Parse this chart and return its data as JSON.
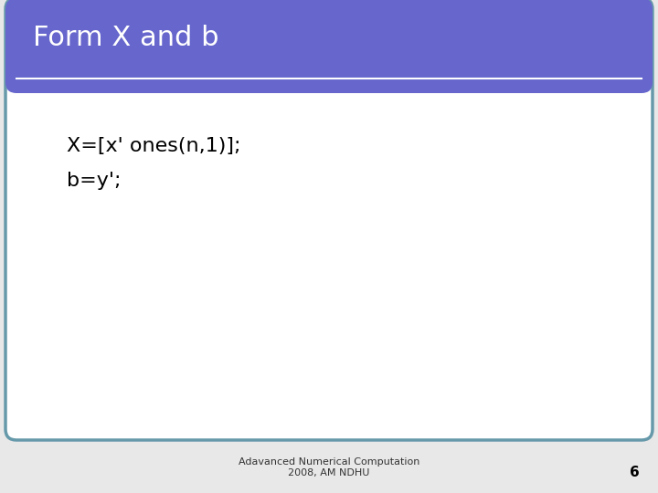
{
  "title": "Form X and b",
  "title_bg_color": "#6666cc",
  "title_text_color": "#ffffff",
  "title_fontsize": 22,
  "body_bg_color": "#ffffff",
  "outer_bg_color": "#e8e8e8",
  "border_color": "#6699aa",
  "code_line1": "X=[x' ones(n,1)];",
  "code_line2": "b=y';",
  "code_fontsize": 16,
  "footer_text": "Adavanced Numerical Computation\n2008, AM NDHU",
  "footer_fontsize": 8,
  "page_number": "6",
  "page_number_fontsize": 11,
  "separator_color": "#ffffff",
  "separator_lw": 1.5
}
